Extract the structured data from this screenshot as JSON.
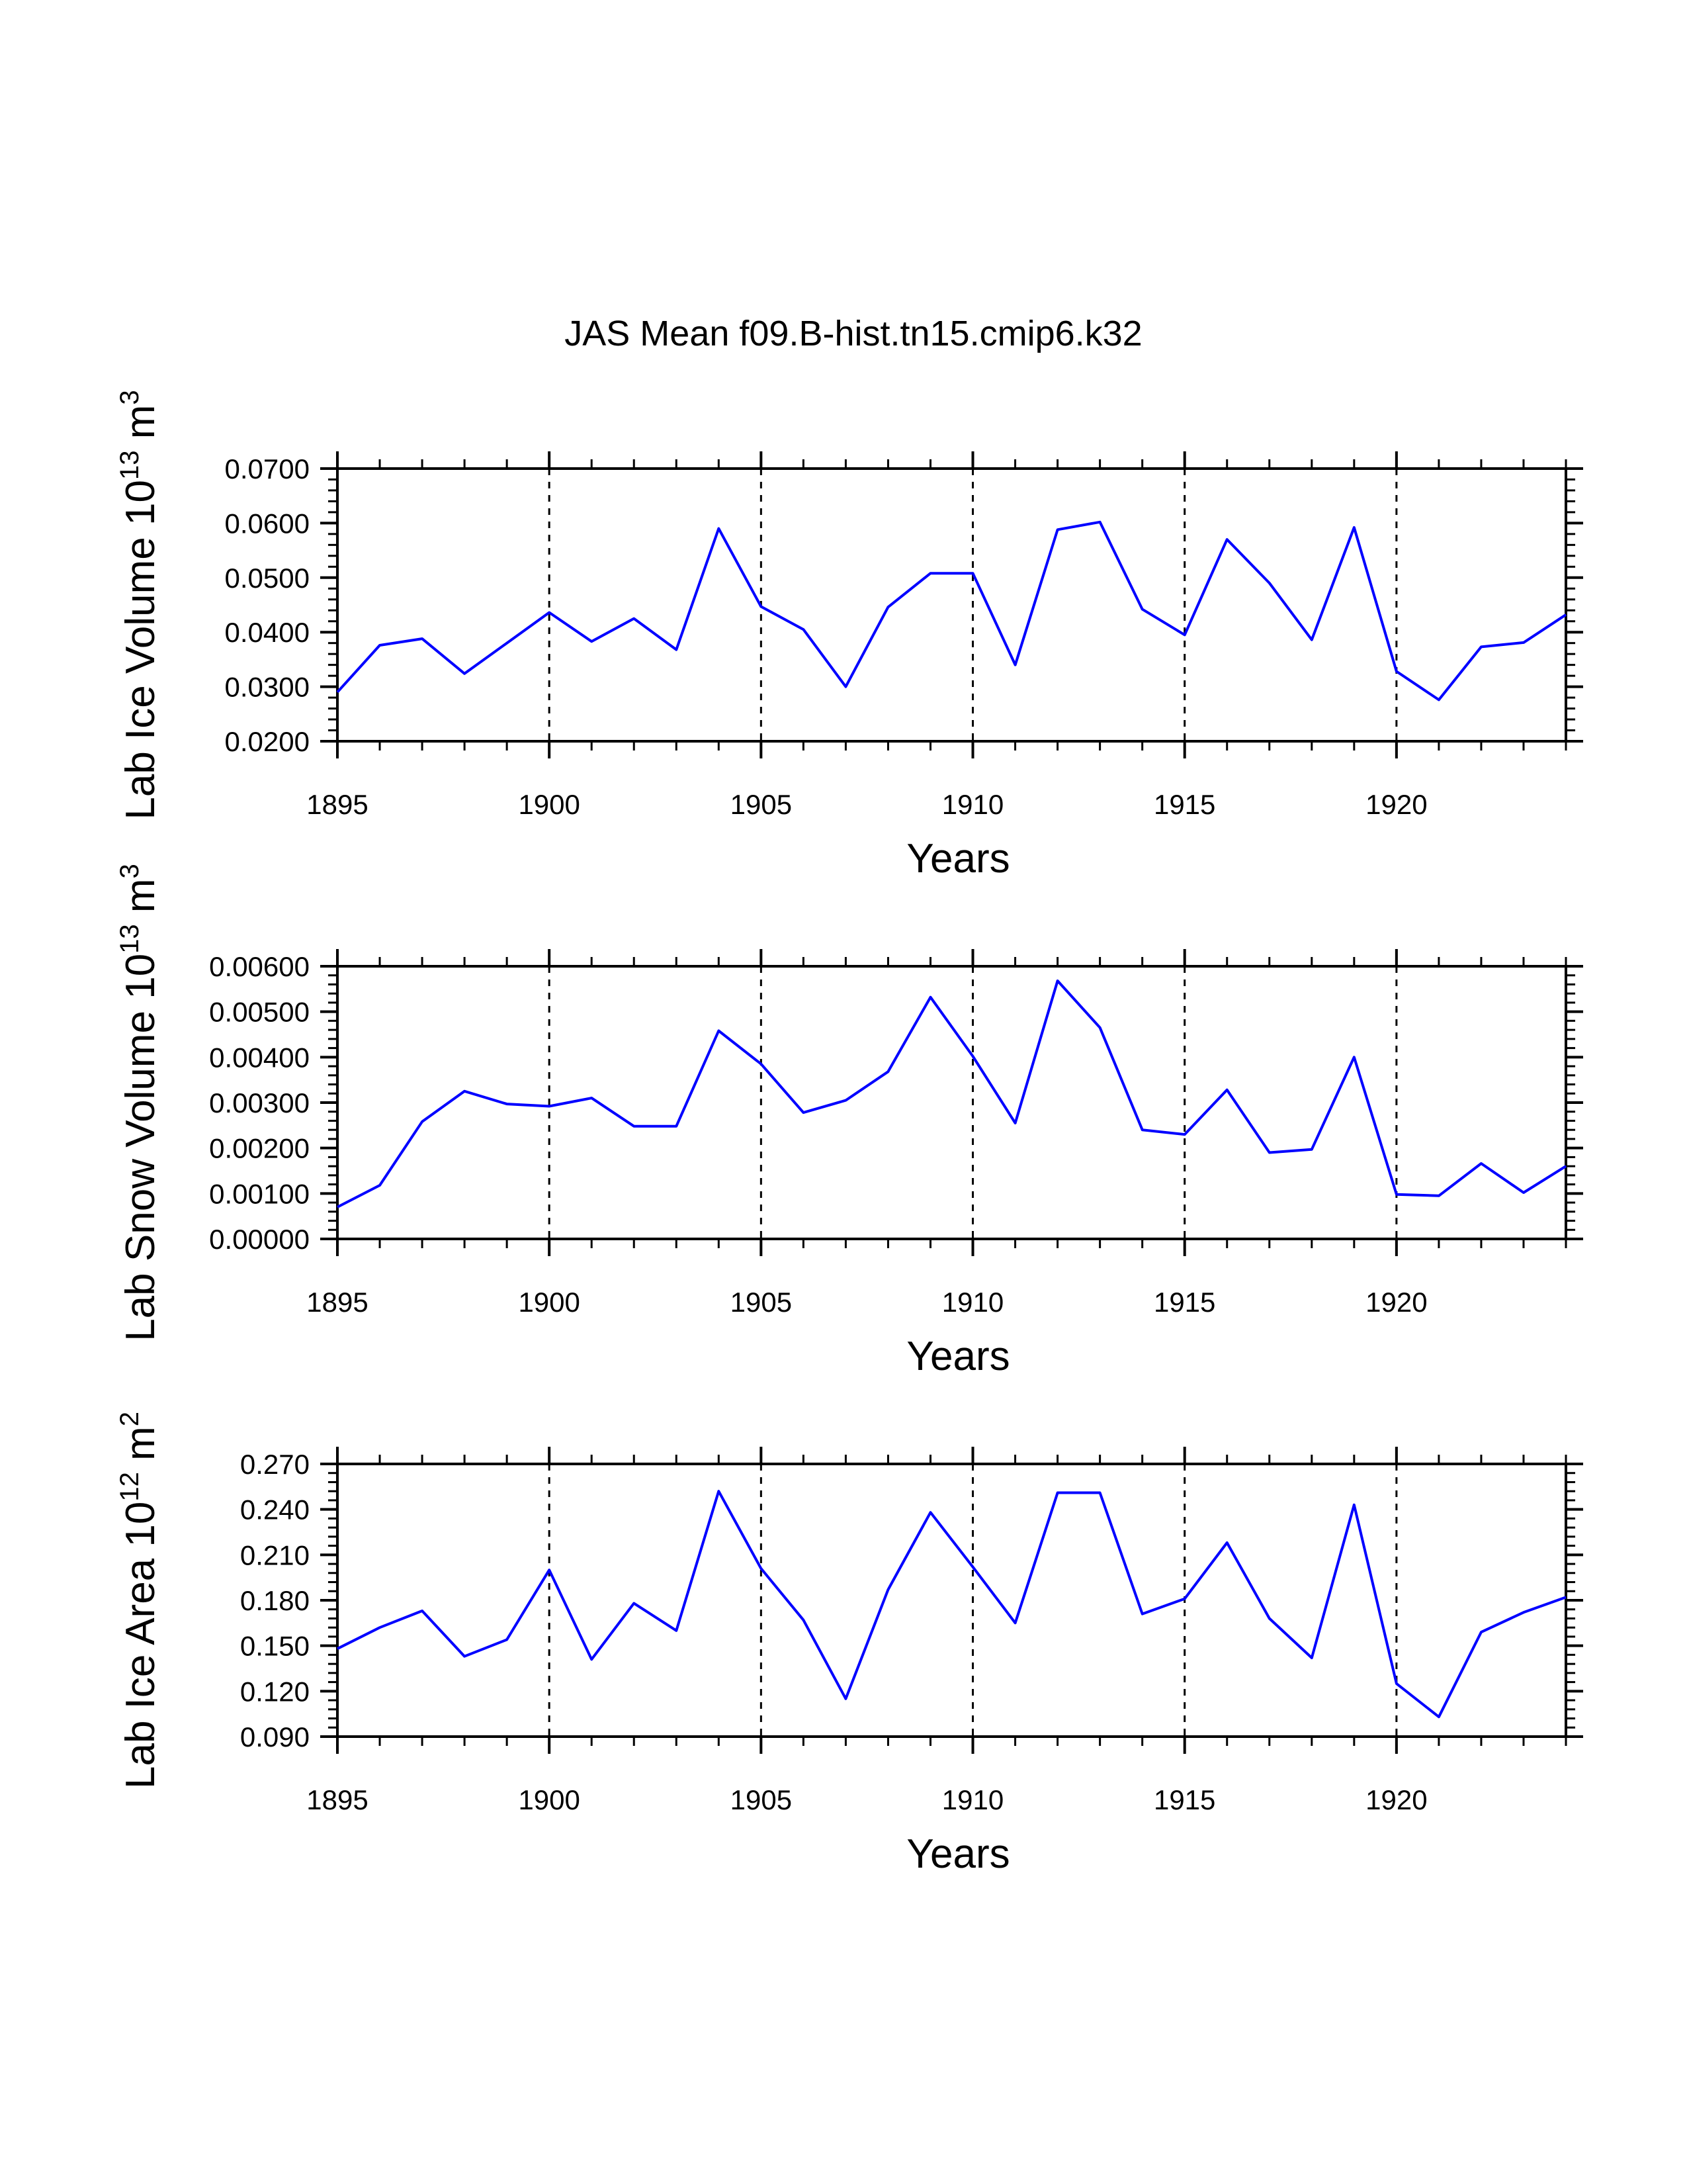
{
  "chart_data": [
    {
      "type": "line",
      "title": "JAS Mean f09.B-hist.tn15.cmip6.k32",
      "xlabel": "Years",
      "ylabel": {
        "main": "Lab Ice Volume 10",
        "exponent": "13",
        "unit": " m",
        "unit_exponent": "3"
      },
      "xlim": [
        1895,
        1924
      ],
      "ylim": [
        0.02,
        0.07
      ],
      "xticks": [
        "1895",
        "1900",
        "1905",
        "1910",
        "1915",
        "1920"
      ],
      "yticks": [
        "0.0200",
        "0.0300",
        "0.0400",
        "0.0500",
        "0.0600",
        "0.0700"
      ],
      "grid_x": [
        1900,
        1905,
        1910,
        1915,
        1920
      ],
      "color": "#0000ff",
      "x": [
        1895,
        1896,
        1897,
        1898,
        1899,
        1900,
        1901,
        1902,
        1903,
        1904,
        1905,
        1906,
        1907,
        1908,
        1909,
        1910,
        1911,
        1912,
        1913,
        1914,
        1915,
        1916,
        1917,
        1918,
        1919,
        1920,
        1921,
        1922,
        1923,
        1924
      ],
      "values": [
        0.029,
        0.0376,
        0.0388,
        0.0324,
        0.038,
        0.0436,
        0.0383,
        0.0425,
        0.0368,
        0.059,
        0.0447,
        0.0405,
        0.03,
        0.0446,
        0.0508,
        0.0508,
        0.034,
        0.0588,
        0.0602,
        0.0442,
        0.0395,
        0.057,
        0.049,
        0.0386,
        0.0592,
        0.0328,
        0.0276,
        0.0373,
        0.0381,
        0.0432
      ]
    },
    {
      "type": "line",
      "xlabel": "Years",
      "ylabel": {
        "main": "Lab Snow Volume 10",
        "exponent": "13",
        "unit": " m",
        "unit_exponent": "3"
      },
      "xlim": [
        1895,
        1924
      ],
      "ylim": [
        0.0,
        0.006
      ],
      "xticks": [
        "1895",
        "1900",
        "1905",
        "1910",
        "1915",
        "1920"
      ],
      "yticks": [
        "0.00000",
        "0.00100",
        "0.00200",
        "0.00300",
        "0.00400",
        "0.00500",
        "0.00600"
      ],
      "grid_x": [
        1900,
        1905,
        1910,
        1915,
        1920
      ],
      "color": "#0000ff",
      "x": [
        1895,
        1896,
        1897,
        1898,
        1899,
        1900,
        1901,
        1902,
        1903,
        1904,
        1905,
        1906,
        1907,
        1908,
        1909,
        1910,
        1911,
        1912,
        1913,
        1914,
        1915,
        1916,
        1917,
        1918,
        1919,
        1920,
        1921,
        1922,
        1923,
        1924
      ],
      "values": [
        0.0007,
        0.00118,
        0.00258,
        0.00325,
        0.00297,
        0.00292,
        0.0031,
        0.00248,
        0.00248,
        0.00458,
        0.00385,
        0.00278,
        0.00305,
        0.00368,
        0.00532,
        0.00402,
        0.00255,
        0.00568,
        0.00465,
        0.0024,
        0.0023,
        0.00328,
        0.0019,
        0.00197,
        0.004,
        0.00098,
        0.00095,
        0.00166,
        0.00102,
        0.0016
      ]
    },
    {
      "type": "line",
      "xlabel": "Years",
      "ylabel": {
        "main": "Lab Ice Area 10",
        "exponent": "12",
        "unit": " m",
        "unit_exponent": "2"
      },
      "xlim": [
        1895,
        1924
      ],
      "ylim": [
        0.09,
        0.27
      ],
      "xticks": [
        "1895",
        "1900",
        "1905",
        "1910",
        "1915",
        "1920"
      ],
      "yticks": [
        "0.090",
        "0.120",
        "0.150",
        "0.180",
        "0.210",
        "0.240",
        "0.270"
      ],
      "grid_x": [
        1900,
        1905,
        1910,
        1915,
        1920
      ],
      "color": "#0000ff",
      "x": [
        1895,
        1896,
        1897,
        1898,
        1899,
        1900,
        1901,
        1902,
        1903,
        1904,
        1905,
        1906,
        1907,
        1908,
        1909,
        1910,
        1911,
        1912,
        1913,
        1914,
        1915,
        1916,
        1917,
        1918,
        1919,
        1920,
        1921,
        1922,
        1923,
        1924
      ],
      "values": [
        0.148,
        0.162,
        0.173,
        0.143,
        0.154,
        0.2,
        0.141,
        0.178,
        0.16,
        0.252,
        0.201,
        0.167,
        0.115,
        0.187,
        0.238,
        0.202,
        0.165,
        0.251,
        0.251,
        0.171,
        0.181,
        0.218,
        0.168,
        0.142,
        0.243,
        0.125,
        0.103,
        0.159,
        0.172,
        0.182
      ]
    }
  ]
}
